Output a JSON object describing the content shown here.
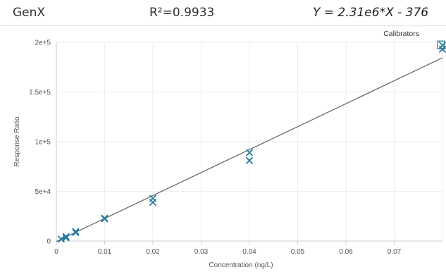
{
  "header": {
    "title": "GenX",
    "r_squared": "R²=0.9933",
    "equation": "Y = 2.31e6*X - 376"
  },
  "chart_data": {
    "type": "scatter",
    "xlabel": "Concentration (ng/L)",
    "ylabel": "Response Ratio",
    "xlim": [
      0,
      0.08
    ],
    "ylim": [
      0,
      200000
    ],
    "x_ticks": [
      0,
      0.01,
      0.02,
      0.03,
      0.04,
      0.05,
      0.06,
      0.07
    ],
    "x_tick_labels": [
      "0",
      "0.01",
      "0.02",
      "0.03",
      "0.04",
      "0.05",
      "0.06",
      "0.07"
    ],
    "y_ticks": [
      0,
      50000,
      100000,
      150000,
      200000
    ],
    "y_tick_labels": [
      "0",
      "5e+4",
      "1e+5",
      "1.5e+5",
      "2e+5"
    ],
    "grid": true,
    "legend": {
      "placement": "top-right",
      "entries": [
        "Calibrators"
      ]
    },
    "colors": {
      "marker": "#2a7a9e",
      "fit_line": "#666666",
      "grid": "#eeeeee",
      "axis": "#cccccc"
    },
    "series": [
      {
        "name": "Calibrators",
        "marker": "x",
        "points": [
          [
            0.001,
            2000
          ],
          [
            0.002,
            4500
          ],
          [
            0.002,
            3300
          ],
          [
            0.004,
            8500
          ],
          [
            0.004,
            9600
          ],
          [
            0.01,
            23000
          ],
          [
            0.01,
            22400
          ],
          [
            0.02,
            43000
          ],
          [
            0.02,
            39000
          ],
          [
            0.04,
            89000
          ],
          [
            0.04,
            81000
          ],
          [
            0.08,
            197000
          ],
          [
            0.08,
            193000
          ]
        ]
      }
    ],
    "fit": {
      "slope": 2310000,
      "intercept": -376,
      "x_range": [
        0,
        0.08
      ]
    }
  }
}
